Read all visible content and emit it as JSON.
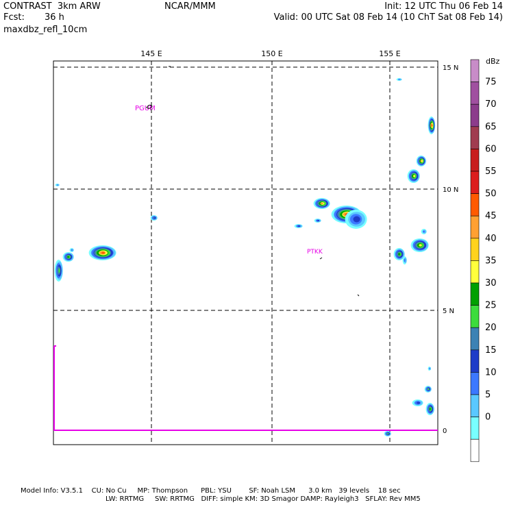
{
  "header": {
    "title": "CONTRAST  3km ARW",
    "fcst_label": "Fcst:",
    "fcst_value": "36 h",
    "variable": "maxdbz_refl_10cm",
    "center": "NCAR/MMM",
    "init": "Init: 12 UTC Thu 06 Feb 14",
    "valid": "Valid: 00 UTC Sat 08 Feb 14 (10 ChT Sat 08 Feb 14)"
  },
  "map": {
    "lon_labels": [
      "145 E",
      "150 E",
      "155 E"
    ],
    "lat_labels": [
      "15 N",
      "10 N",
      "5 N",
      "0"
    ],
    "stations": [
      "PGUM",
      "PTKK"
    ],
    "grid_style": "dashed",
    "boundary_color": "#e600e6"
  },
  "colorbar": {
    "unit": "dBz",
    "labels": [
      "75",
      "70",
      "65",
      "60",
      "55",
      "50",
      "45",
      "40",
      "35",
      "30",
      "25",
      "20",
      "15",
      "10",
      "5",
      "0"
    ],
    "colors": [
      "#c88cc8",
      "#a050a0",
      "#8c3c8c",
      "#a03c50",
      "#c81e1e",
      "#dc1e1e",
      "#ff5a00",
      "#ffa032",
      "#ffd21e",
      "#ffff3c",
      "#00a000",
      "#3cdc3c",
      "#3c82b4",
      "#1e3cc8",
      "#3c78ff",
      "#5ac8ff",
      "#78ffff",
      "#ffffff"
    ]
  },
  "footer": {
    "line1": "Model Info: V3.5.1    CU: No Cu     MP: Thompson      PBL: YSU        SF: Noah LSM      3.0 km   39 levels    18 sec",
    "line2": "LW: RRTMG     SW: RRTMG   DIFF: simple KM: 3D Smagor DAMP: Rayleigh3   SFLAY: Rev MM5"
  }
}
